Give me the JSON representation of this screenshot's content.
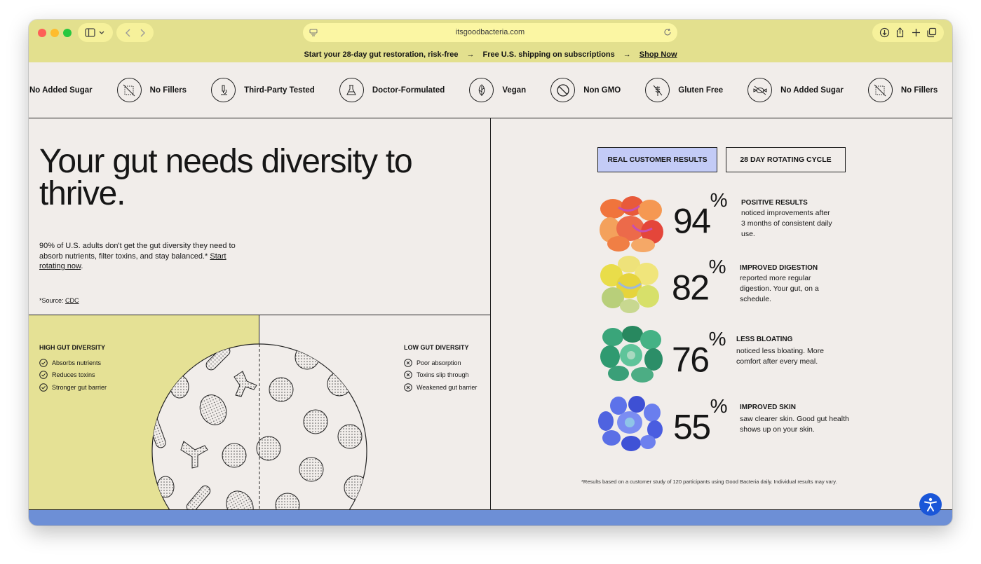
{
  "browser": {
    "url": "itsgoodbacteria.com"
  },
  "announcement": {
    "item1": "Start your 28-day gut restoration, risk-free",
    "arrow": "→",
    "item2": "Free U.S. shipping on subscriptions",
    "cta": "Shop Now"
  },
  "badges": [
    {
      "label": "No Added Sugar",
      "icon": "no-sugar-icon"
    },
    {
      "label": "No Fillers",
      "icon": "no-fillers-icon"
    },
    {
      "label": "Third-Party Tested",
      "icon": "microscope-icon"
    },
    {
      "label": "Doctor-Formulated",
      "icon": "flask-icon"
    },
    {
      "label": "Vegan",
      "icon": "leaf-icon"
    },
    {
      "label": "Non GMO",
      "icon": "prohibited-icon"
    },
    {
      "label": "Gluten Free",
      "icon": "wheat-icon"
    },
    {
      "label": "No Added Sugar",
      "icon": "no-sugar-icon"
    },
    {
      "label": "No Fillers",
      "icon": "no-fillers-icon"
    }
  ],
  "hero": {
    "headline": "Your gut needs diversity to thrive.",
    "intro": "90% of U.S. adults don't get the gut diversity they need to absorb nutrients, filter toxins, and stay balanced.*",
    "intro_link": "Start rotating now",
    "intro_end": ".",
    "source_prefix": "*Source:",
    "source_link": "CDC"
  },
  "diversity": {
    "high": {
      "title": "HIGH GUT DIVERSITY",
      "items": [
        "Absorbs nutrients",
        "Reduces toxins",
        "Stronger gut barrier"
      ]
    },
    "low": {
      "title": "LOW GUT DIVERSITY",
      "items": [
        "Poor absorption",
        "Toxins slip through",
        "Weakened gut barrier"
      ]
    }
  },
  "results": {
    "tabs": [
      "REAL CUSTOMER RESULTS",
      "28 DAY ROTATING CYCLE"
    ],
    "stats": [
      {
        "value": "94",
        "unit": "%",
        "label": "POSITIVE RESULTS",
        "desc": "noticed improvements after 3 months of consistent daily use.",
        "color": "#f0743c"
      },
      {
        "value": "82",
        "unit": "%",
        "label": "IMPROVED DIGESTION",
        "desc": "reported more regular digestion. Your gut, on a schedule.",
        "color": "#e9dd4a"
      },
      {
        "value": "76",
        "unit": "%",
        "label": "LESS BLOATING",
        "desc": "noticed less bloating. More comfort after every meal.",
        "color": "#2f9a70"
      },
      {
        "value": "55",
        "unit": "%",
        "label": "IMPROVED SKIN",
        "desc": "saw clearer skin. Good gut health shows up on your skin.",
        "color": "#4f63e0"
      }
    ],
    "disclaimer": "*Results based on a customer study of 120 participants using Good Bacteria daily. Individual results may vary."
  },
  "colors": {
    "toolbar": "#e3e08e",
    "page_bg": "#f1edea",
    "active_tab": "#c3cbf6",
    "accessibility": "#1a56d8"
  }
}
